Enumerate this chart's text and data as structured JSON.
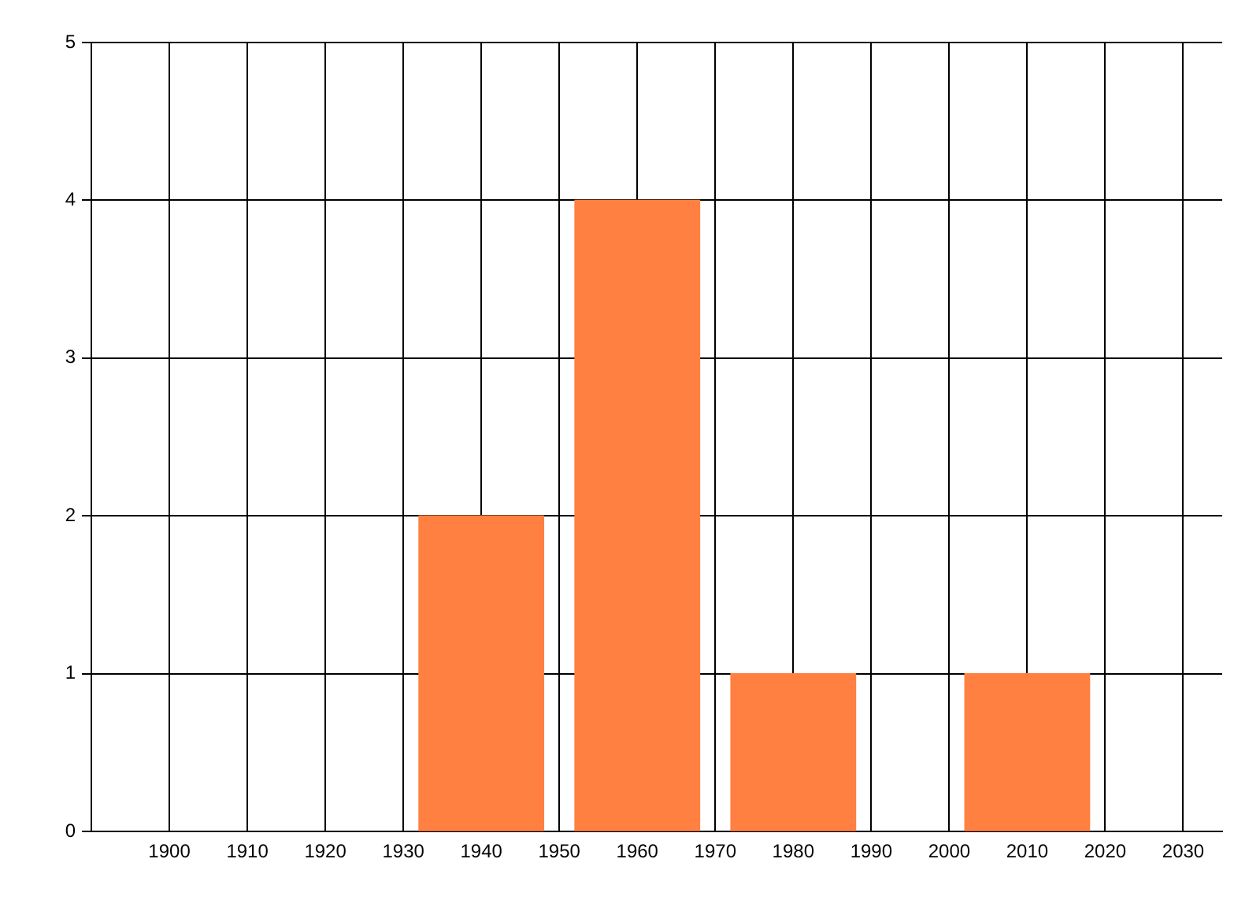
{
  "chart_data": {
    "type": "bar",
    "x": [
      1940,
      1960,
      1980,
      2010
    ],
    "values": [
      2,
      4,
      1,
      1
    ],
    "color": "#ff8040",
    "xlim": [
      1890,
      2035
    ],
    "xticks": [
      1900,
      1910,
      1920,
      1930,
      1940,
      1950,
      1960,
      1970,
      1980,
      1990,
      2000,
      2010,
      2020,
      2030
    ],
    "ylim": [
      0,
      5
    ],
    "yticks": [
      0,
      1,
      2,
      3,
      4,
      5
    ],
    "grid": true
  }
}
